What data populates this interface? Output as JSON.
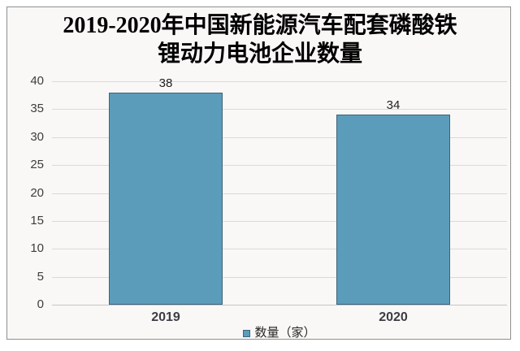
{
  "chart_data": {
    "type": "bar",
    "title": "2019-2020年中国新能源汽车配套磷酸铁锂动力电池企业数量",
    "title_lines": [
      "2019-2020年中国新能源汽车配套磷酸铁",
      "锂动力电池企业数量"
    ],
    "categories": [
      "2019",
      "2020"
    ],
    "series": [
      {
        "name": "数量（家）",
        "values": [
          38,
          34
        ]
      }
    ],
    "data_labels": [
      "38",
      "34"
    ],
    "xlabel": "",
    "ylabel": "",
    "ylim": [
      0,
      40
    ],
    "yticks": [
      0,
      5,
      10,
      15,
      20,
      25,
      30,
      35,
      40
    ],
    "grid": true,
    "legend_position": "bottom",
    "colors": {
      "bar_fill": "#5b9cbb",
      "bar_border": "#3b657b",
      "gridline": "#dadada",
      "zero_line": "#c6c6c6",
      "tick_text": "#3d3d3d",
      "value_text": "#1f1f1f",
      "xtick_text": "#3c3c44",
      "title_text": "#000000",
      "frame_border": "#8f8f8f",
      "frame_background": "#f9f8f6"
    }
  }
}
